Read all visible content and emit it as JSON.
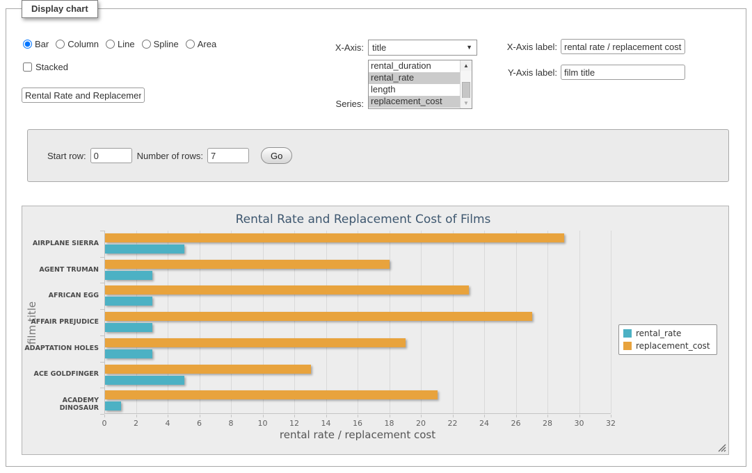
{
  "panel": {
    "title": "Display chart"
  },
  "chart_type": {
    "options": [
      {
        "label": "Bar",
        "selected": true
      },
      {
        "label": "Column",
        "selected": false
      },
      {
        "label": "Line",
        "selected": false
      },
      {
        "label": "Spline",
        "selected": false
      },
      {
        "label": "Area",
        "selected": false
      }
    ]
  },
  "stacked_checkbox": {
    "label": "Stacked",
    "checked": false
  },
  "chart_title_field": {
    "value": "Rental Rate and Replacement Cost of Films"
  },
  "x_axis_select": {
    "label": "X-Axis:",
    "value": "title"
  },
  "series_list": {
    "label": "Series:",
    "options": [
      {
        "label": "rental_duration",
        "selected": false
      },
      {
        "label": "rental_rate",
        "selected": true
      },
      {
        "label": "length",
        "selected": false
      },
      {
        "label": "replacement_cost",
        "selected": true
      }
    ]
  },
  "x_axis_label_field": {
    "label": "X-Axis label:",
    "value": "rental rate / replacement cost"
  },
  "y_axis_label_field": {
    "label": "Y-Axis label:",
    "value": "film title"
  },
  "row_controls": {
    "start_row_label": "Start row:",
    "start_row_value": "0",
    "num_rows_label": "Number of rows:",
    "num_rows_value": "7",
    "go_label": "Go"
  },
  "chart_data": {
    "type": "bar",
    "title": "Rental Rate and Replacement Cost of Films",
    "xlabel": "rental rate / replacement cost",
    "ylabel": "film title",
    "categories": [
      "AIRPLANE SIERRA",
      "AGENT TRUMAN",
      "AFRICAN EGG",
      "AFFAIR PREJUDICE",
      "ADAPTATION HOLES",
      "ACE GOLDFINGER",
      "ACADEMY DINOSAUR"
    ],
    "series": [
      {
        "name": "rental_rate",
        "color": "#4cb1c4",
        "values": [
          4.99,
          2.99,
          2.99,
          2.99,
          2.99,
          4.99,
          0.99
        ]
      },
      {
        "name": "replacement_cost",
        "color": "#e8a33d",
        "values": [
          28.99,
          17.99,
          22.99,
          26.99,
          18.99,
          12.99,
          20.99
        ]
      }
    ],
    "bar_order_top_to_bottom": [
      "replacement_cost",
      "rental_rate"
    ],
    "xlim": [
      0,
      32
    ],
    "tick_step": 2,
    "grid": true,
    "legend_position": "right",
    "legend_items": [
      "rental_rate",
      "replacement_cost"
    ]
  }
}
